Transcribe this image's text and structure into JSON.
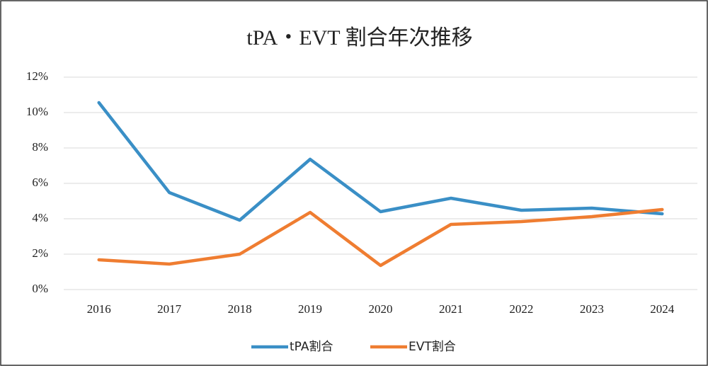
{
  "chart_data": {
    "type": "line",
    "title": "tPA・EVT 割合年次推移",
    "categories": [
      "2016",
      "2017",
      "2018",
      "2019",
      "2020",
      "2021",
      "2022",
      "2023",
      "2024"
    ],
    "series": [
      {
        "name": "tPA割合",
        "color": "#3a8fc6",
        "values": [
          10.56,
          5.48,
          3.92,
          7.36,
          4.4,
          5.16,
          4.48,
          4.6,
          4.28
        ]
      },
      {
        "name": "EVT割合",
        "color": "#ef7d31",
        "values": [
          1.68,
          1.44,
          2.0,
          4.36,
          1.36,
          3.68,
          3.84,
          4.12,
          4.52
        ]
      }
    ],
    "ylim": [
      0,
      12
    ],
    "yticks": [
      {
        "value": 0,
        "label": "0%"
      },
      {
        "value": 2,
        "label": "2%"
      },
      {
        "value": 4,
        "label": "4%"
      },
      {
        "value": 6,
        "label": "6%"
      },
      {
        "value": 8,
        "label": "8%"
      },
      {
        "value": 10,
        "label": "10%"
      },
      {
        "value": 12,
        "label": "12%"
      }
    ],
    "grid": true,
    "legend": "bottom"
  }
}
